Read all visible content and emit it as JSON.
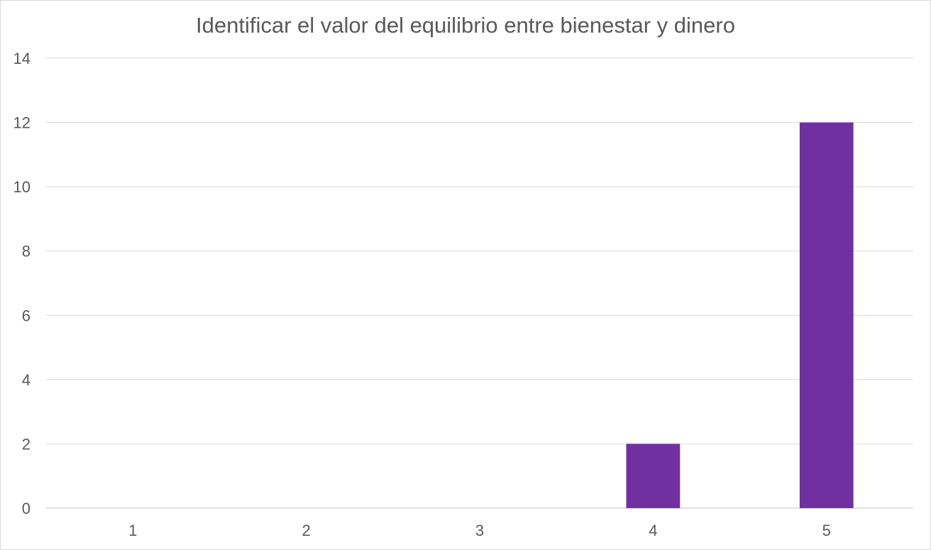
{
  "chart_data": {
    "type": "bar",
    "title": "Identificar el valor del equilibrio entre bienestar y dinero",
    "categories": [
      "1",
      "2",
      "3",
      "4",
      "5"
    ],
    "values": [
      0,
      0,
      0,
      2,
      12
    ],
    "ylim": [
      0,
      14
    ],
    "yticks": [
      "0",
      "2",
      "4",
      "6",
      "8",
      "10",
      "12",
      "14"
    ],
    "xlabel": "",
    "ylabel": "",
    "grid": true,
    "legend": "none",
    "colors": {
      "bar": "#7030a0",
      "grid": "#d9d9d9",
      "text": "#595959"
    }
  }
}
